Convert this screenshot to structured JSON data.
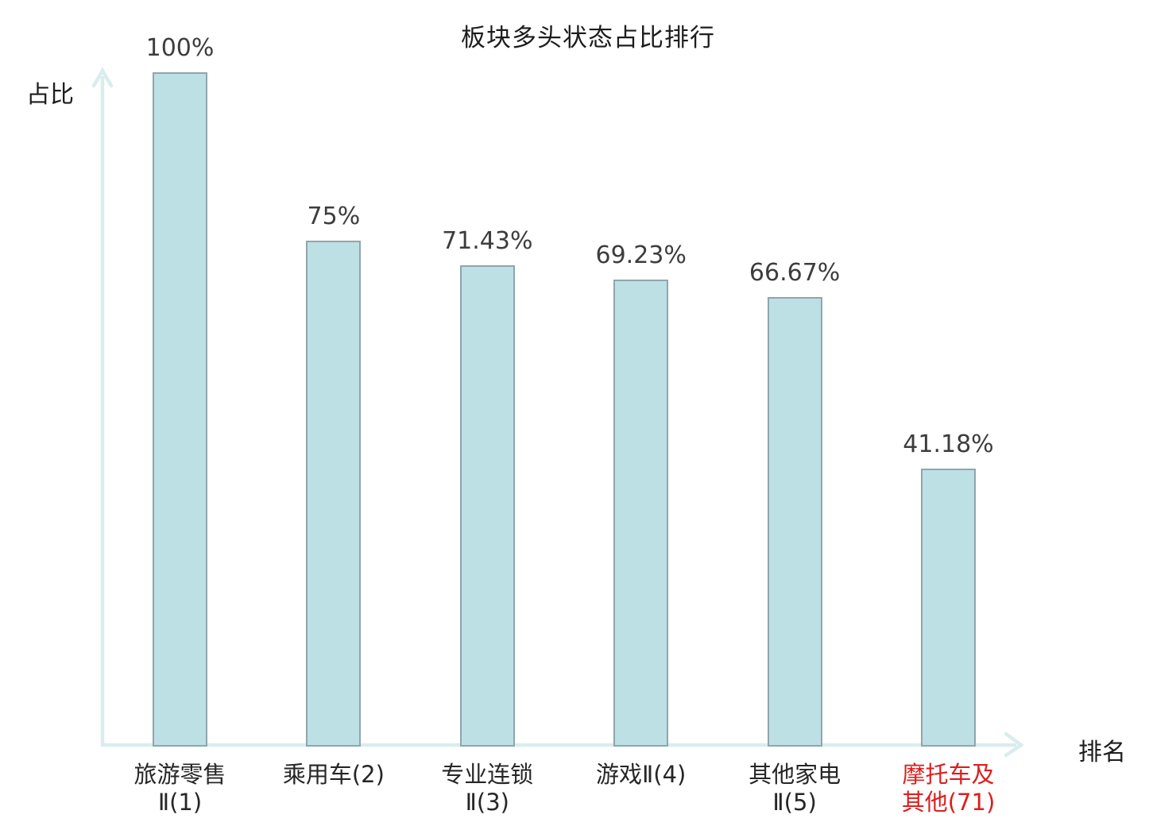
{
  "title": "板块多头状态占比排行",
  "axes": {
    "y_label": "占比",
    "x_label": "排名"
  },
  "colors": {
    "bar_fill": "#bde0e4",
    "bar_border": "#8fa6ac",
    "axis": "#d9edef",
    "value_text": "#3d3d3d",
    "category_text": "#262626",
    "highlight_text": "#dc1e1e"
  },
  "chart_data": {
    "type": "bar",
    "title": "板块多头状态占比排行",
    "xlabel": "排名",
    "ylabel": "占比",
    "ylim": [
      0,
      100
    ],
    "grid": false,
    "legend": "none",
    "categories": [
      "旅游零售Ⅱ(1)",
      "乘用车(2)",
      "专业连锁Ⅱ(3)",
      "游戏Ⅱ(4)",
      "其他家电Ⅱ(5)",
      "摩托车及其他(71)"
    ],
    "category_lines": [
      [
        "旅游零售",
        "Ⅱ(1)"
      ],
      [
        "乘用车(2)"
      ],
      [
        "专业连锁",
        "Ⅱ(3)"
      ],
      [
        "游戏Ⅱ(4)"
      ],
      [
        "其他家电",
        "Ⅱ(5)"
      ],
      [
        "摩托车及",
        "其他(71)"
      ]
    ],
    "values": [
      100,
      75,
      71.43,
      69.23,
      66.67,
      41.18
    ],
    "value_labels": [
      "100%",
      "75%",
      "71.43%",
      "69.23%",
      "66.67%",
      "41.18%"
    ],
    "highlight_index": 5
  }
}
